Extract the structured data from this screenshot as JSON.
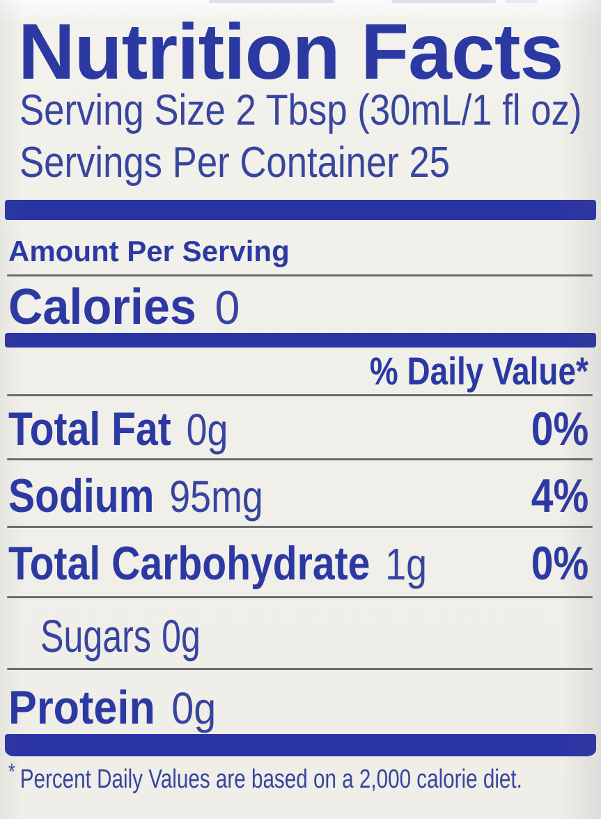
{
  "nutrition_label": {
    "title": "Nutrition Facts",
    "serving_size": "Serving Size 2 Tbsp (30mL/1 fl oz)",
    "servings_per_container": "Servings Per Container 25",
    "amount_per_serving_header": "Amount Per Serving",
    "calories": {
      "label": "Calories",
      "value": "0"
    },
    "daily_value_header": "% Daily Value*",
    "nutrient_rows": [
      {
        "name": "Total Fat",
        "amount": "0g",
        "daily_value": "0%"
      },
      {
        "name": "Sodium",
        "amount": "95mg",
        "daily_value": "4%"
      },
      {
        "name": "Total Carbohydrate",
        "amount": "1g",
        "daily_value": "0%"
      },
      {
        "name": "Sugars",
        "amount": "0g",
        "daily_value": ""
      },
      {
        "name": "Protein",
        "amount": "0g",
        "daily_value": ""
      }
    ],
    "footnote": {
      "asterisk": "*",
      "text": "Percent Daily Values are based on a 2,000 calorie diet."
    },
    "colors": {
      "label_blue": "#2c39a3",
      "bar_blue": "#2b34a4",
      "regular_text_blue": "#38459e",
      "separator_gray": "#6a6c70",
      "background": "#f0efe9"
    }
  }
}
